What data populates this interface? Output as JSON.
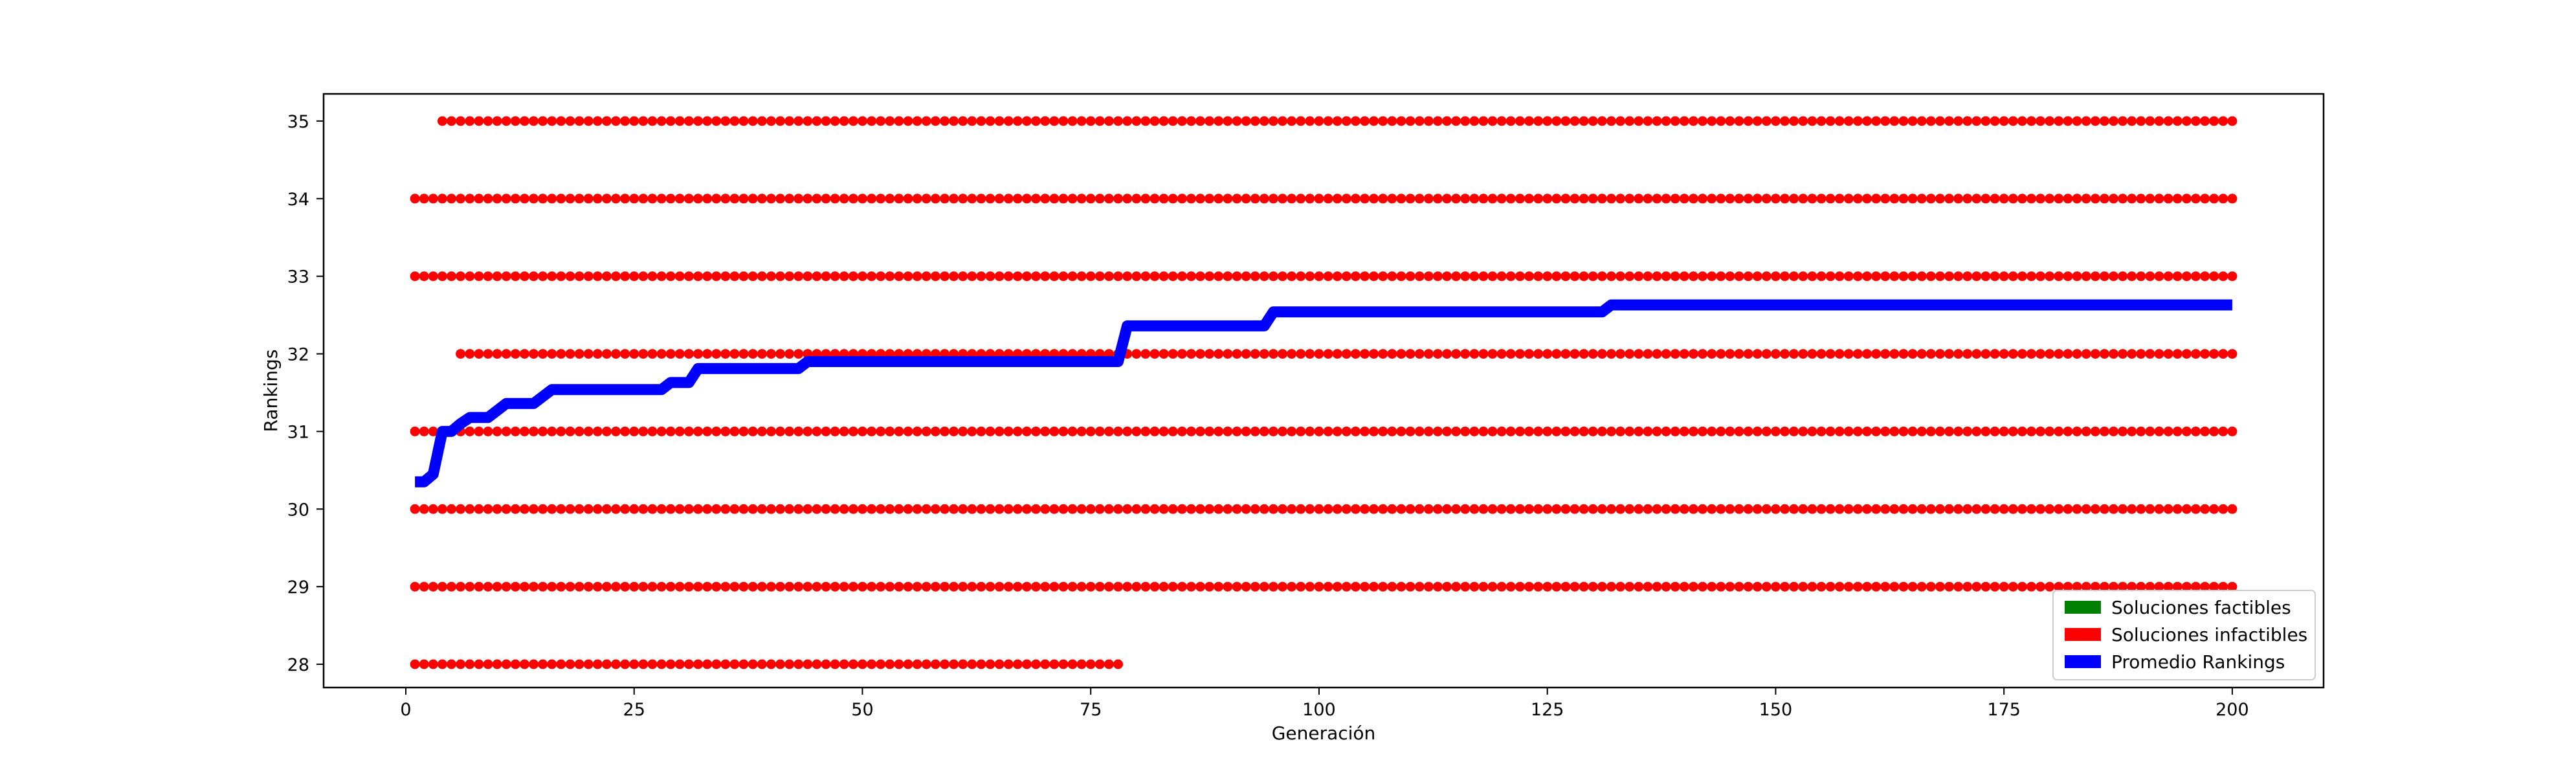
{
  "chart_data": {
    "type": "scatter",
    "title": "",
    "xlabel": "Generación",
    "ylabel": "Rankings",
    "xlim": [
      -9,
      210
    ],
    "ylim": [
      27.7,
      35.35
    ],
    "xticks": [
      0,
      25,
      50,
      75,
      100,
      125,
      150,
      175,
      200
    ],
    "yticks": [
      28,
      29,
      30,
      31,
      32,
      33,
      34,
      35
    ],
    "grid": false,
    "legend_position": "lower-right",
    "legend": [
      {
        "label": "Soluciones factibles",
        "color": "#008000"
      },
      {
        "label": "Soluciones infactibles",
        "color": "#ff0000"
      },
      {
        "label": "Promedio Rankings",
        "color": "#0000ff"
      }
    ],
    "series": [
      {
        "name": "Soluciones infactibles",
        "kind": "scatter",
        "color": "#ff0000",
        "rows": [
          {
            "y": 28,
            "x_start": 1,
            "x_end": 78
          },
          {
            "y": 29,
            "x_start": 1,
            "x_end": 200
          },
          {
            "y": 30,
            "x_start": 1,
            "x_end": 200
          },
          {
            "y": 31,
            "x_start": 1,
            "x_end": 200
          },
          {
            "y": 32,
            "x_start": 6,
            "x_end": 200
          },
          {
            "y": 33,
            "x_start": 1,
            "x_end": 200
          },
          {
            "y": 34,
            "x_start": 1,
            "x_end": 200
          },
          {
            "y": 35,
            "x_start": 4,
            "x_end": 200
          }
        ]
      },
      {
        "name": "Promedio Rankings",
        "kind": "line",
        "color": "#0000ff",
        "x": [
          1,
          2,
          3,
          4,
          5,
          6,
          7,
          8,
          9,
          10,
          11,
          12,
          13,
          14,
          15,
          16,
          17,
          28,
          29,
          30,
          31,
          32,
          43,
          44,
          78,
          79,
          94,
          95,
          131,
          132,
          200
        ],
        "y": [
          30.35,
          30.35,
          30.45,
          31.0,
          31.0,
          31.1,
          31.18,
          31.18,
          31.18,
          31.27,
          31.36,
          31.36,
          31.36,
          31.36,
          31.45,
          31.54,
          31.54,
          31.54,
          31.63,
          31.63,
          31.63,
          31.81,
          31.81,
          31.9,
          31.9,
          32.36,
          32.36,
          32.54,
          32.54,
          32.63,
          32.63
        ]
      }
    ]
  }
}
